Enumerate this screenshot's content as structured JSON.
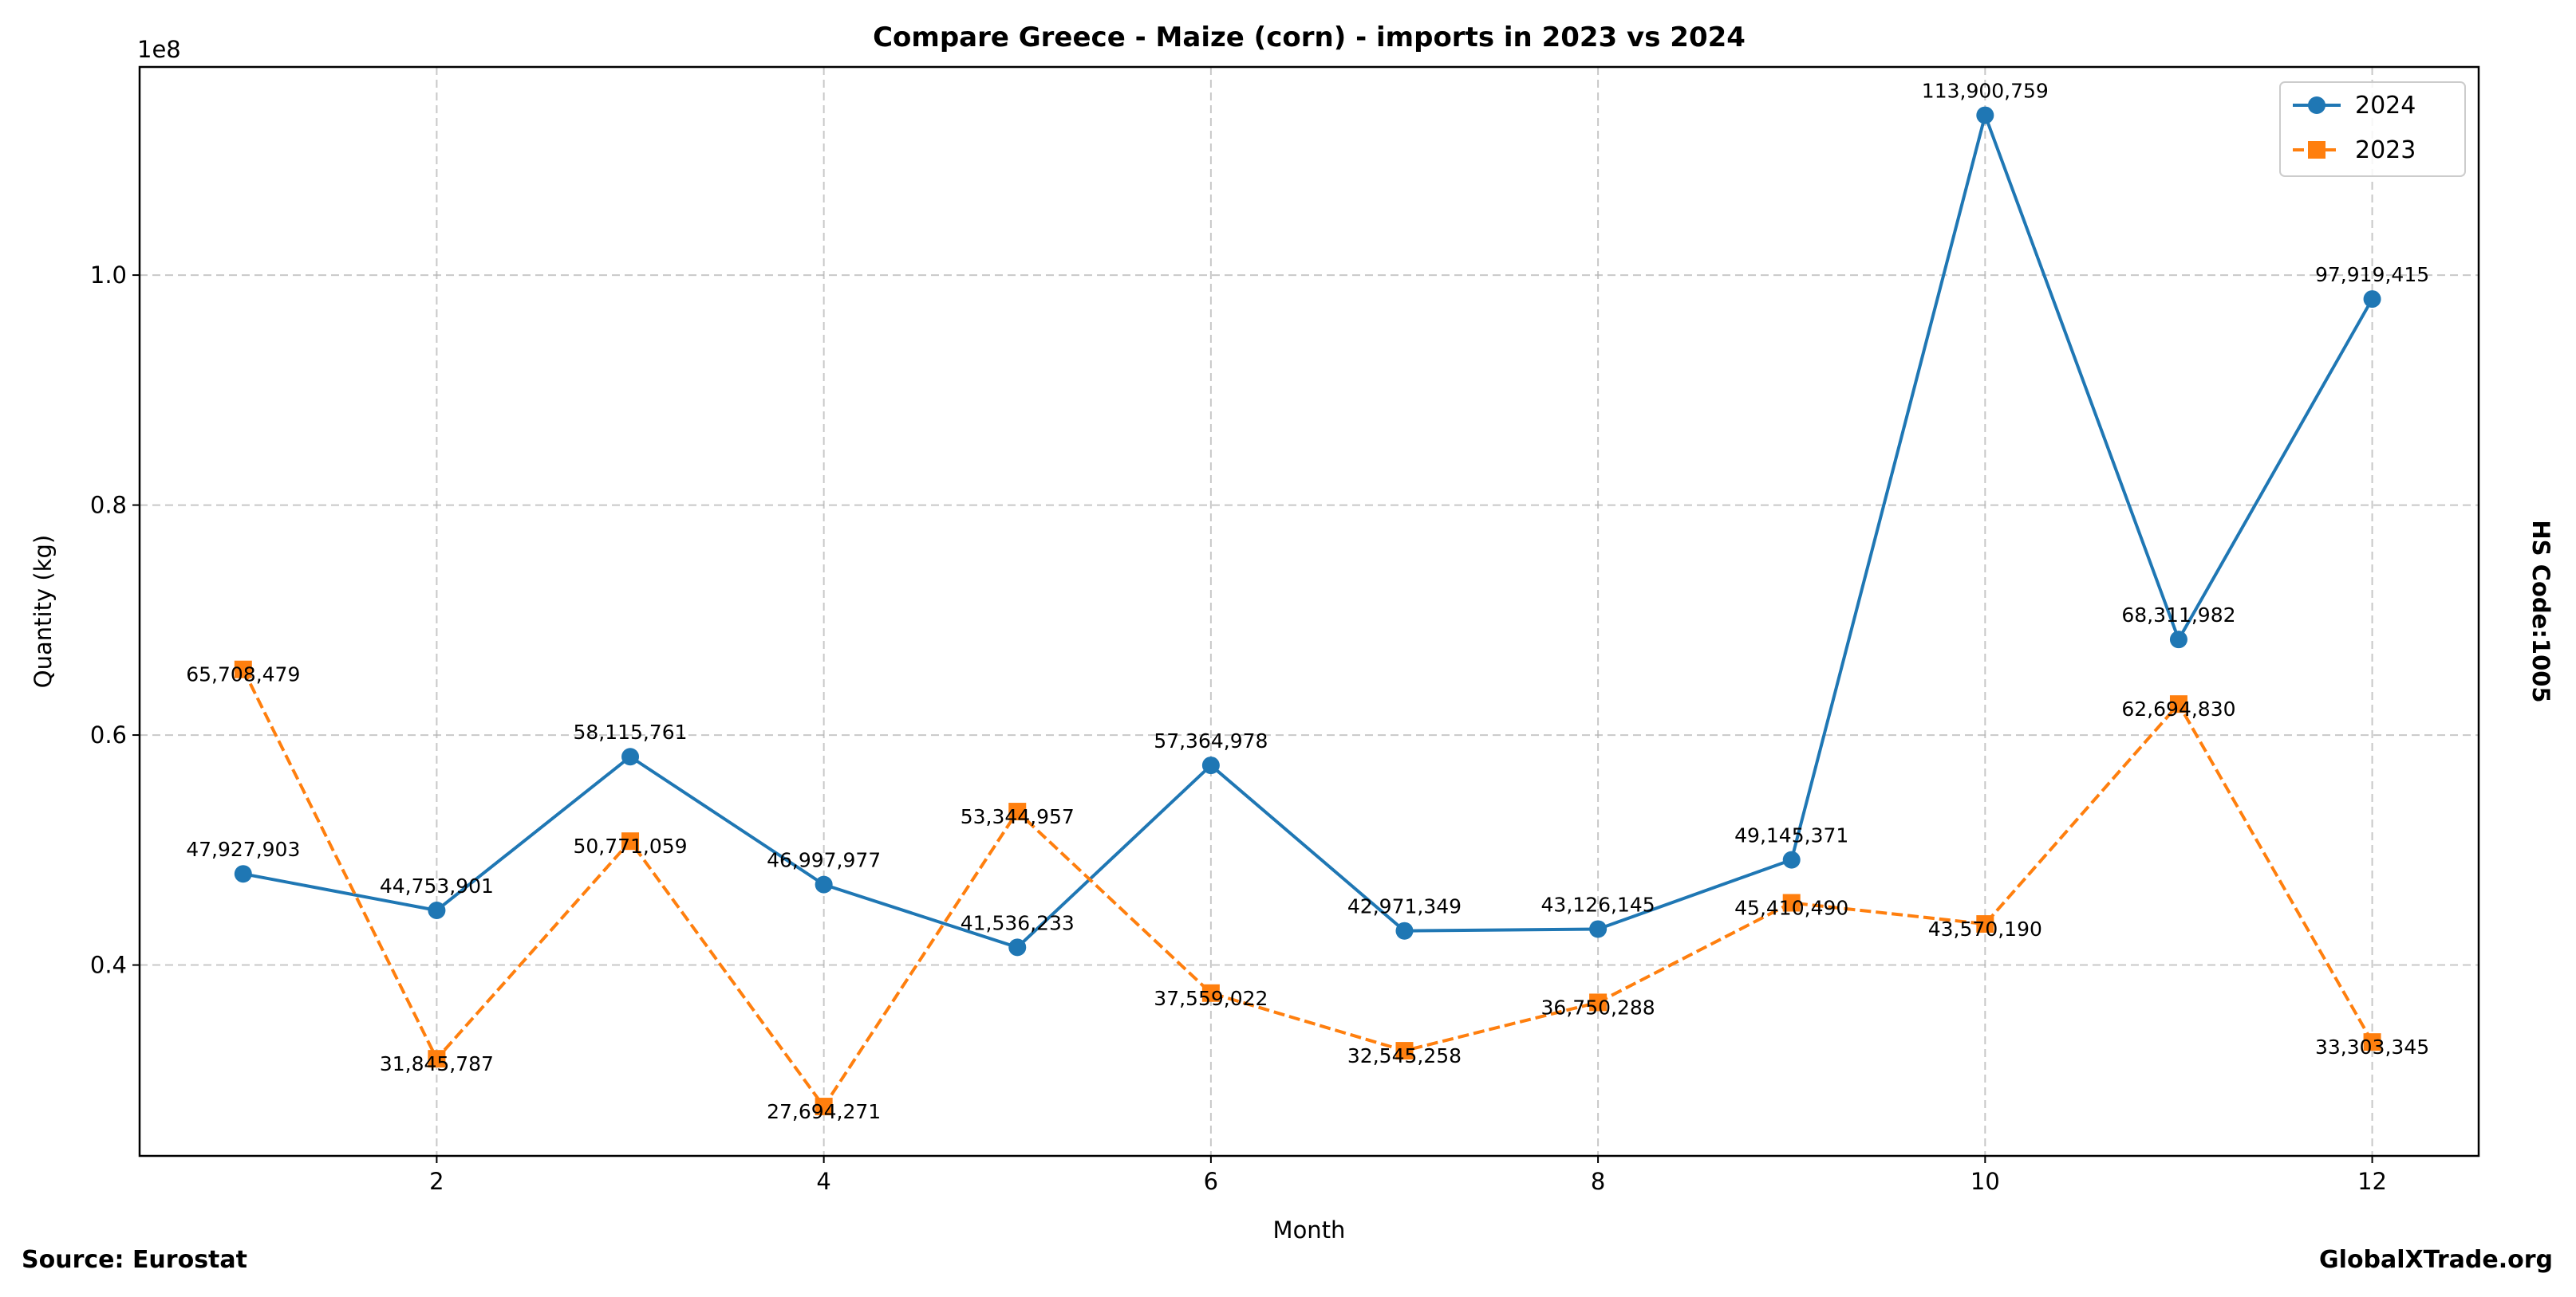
{
  "chart_data": {
    "type": "line",
    "title": "Compare Greece - Maize (corn) - imports in 2023 vs 2024",
    "xlabel": "Month",
    "ylabel": "Quantity (kg)",
    "y_offset_label": "1e8",
    "x": [
      1,
      2,
      3,
      4,
      5,
      6,
      7,
      8,
      9,
      10,
      11,
      12
    ],
    "xlim": [
      0.465,
      12.55
    ],
    "ylim": [
      23400000,
      118100000
    ],
    "x_ticks": [
      2,
      4,
      6,
      8,
      10,
      12
    ],
    "x_tick_labels": [
      "2",
      "4",
      "6",
      "8",
      "10",
      "12"
    ],
    "y_ticks": [
      40000000,
      60000000,
      80000000,
      100000000
    ],
    "y_tick_labels": [
      "0.4",
      "0.6",
      "0.8",
      "1.0"
    ],
    "grid": true,
    "legend_position": "top-right",
    "series": [
      {
        "name": "2024",
        "color": "#1f77b4",
        "marker": "circle",
        "linestyle": "solid",
        "values": [
          47927903,
          44753901,
          58115761,
          46997977,
          41536233,
          57364978,
          42971349,
          43126145,
          49145371,
          113900759,
          68311982,
          97919415
        ],
        "labels": [
          "47,927,903",
          "44,753,901",
          "58,115,761",
          "46,997,977",
          "41,536,233",
          "57,364,978",
          "42,971,349",
          "43,126,145",
          "49,145,371",
          "113,900,759",
          "68,311,982",
          "97,919,415"
        ]
      },
      {
        "name": "2023",
        "color": "#ff7f0e",
        "marker": "square",
        "linestyle": "dashed",
        "values": [
          65708479,
          31845787,
          50771059,
          27694271,
          53344957,
          37559022,
          32545258,
          36750288,
          45410490,
          43570190,
          62694830,
          33303345
        ],
        "labels": [
          "65,708,479",
          "31,845,787",
          "50,771,059",
          "27,694,271",
          "53,344,957",
          "37,559,022",
          "32,545,258",
          "36,750,288",
          "45,410,490",
          "43,570,190",
          "62,694,830",
          "33,303,345"
        ]
      }
    ]
  },
  "side_label": "HS Code:1005",
  "footer": {
    "source": "Source: Eurostat",
    "brand": "GlobalXTrade.org"
  }
}
